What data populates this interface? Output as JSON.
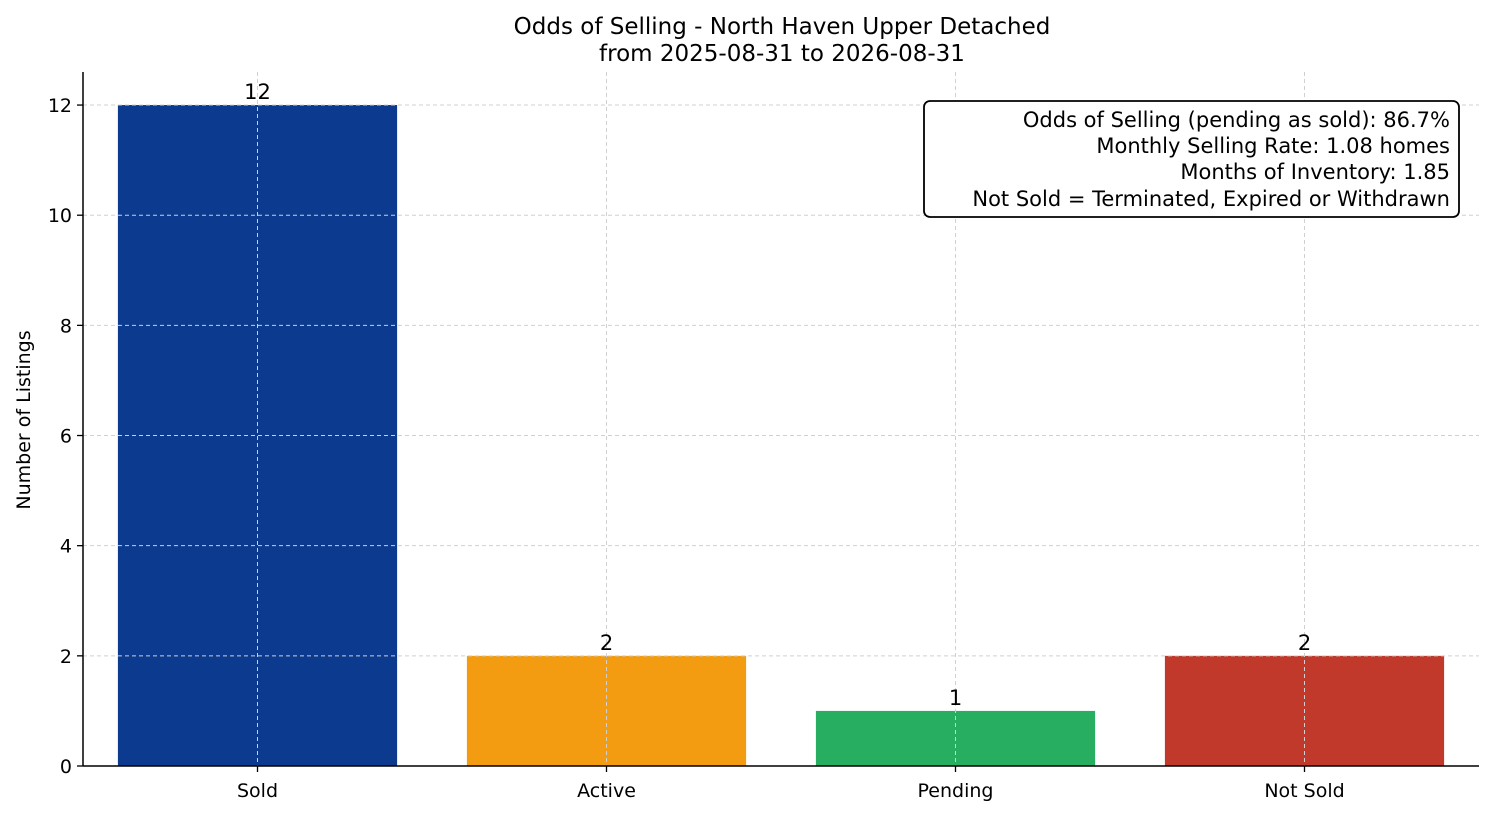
{
  "chart_data": {
    "type": "bar",
    "title": "Odds of Selling - North Haven Upper Detached",
    "subtitle": "from 2025-08-31 to 2026-08-31",
    "xlabel": "",
    "ylabel": "Number of Listings",
    "categories": [
      "Sold",
      "Active",
      "Pending",
      "Not Sold"
    ],
    "values": [
      12,
      2,
      1,
      2
    ],
    "value_labels": [
      "12",
      "2",
      "1",
      "2"
    ],
    "colors": [
      "#0b3a8e",
      "#f39c12",
      "#27ae60",
      "#c0392b"
    ],
    "ylim": [
      0,
      12.6
    ],
    "yticks": [
      0,
      2,
      4,
      6,
      8,
      10,
      12
    ],
    "ytick_labels": [
      "0",
      "2",
      "4",
      "6",
      "8",
      "10",
      "12"
    ],
    "grid": true,
    "annotation": {
      "placement": "top-right",
      "lines": [
        "Odds of Selling (pending as sold): 86.7%",
        "Monthly Selling Rate: 1.08 homes",
        "Months of Inventory: 1.85",
        "Not Sold = Terminated, Expired or Withdrawn"
      ]
    }
  }
}
